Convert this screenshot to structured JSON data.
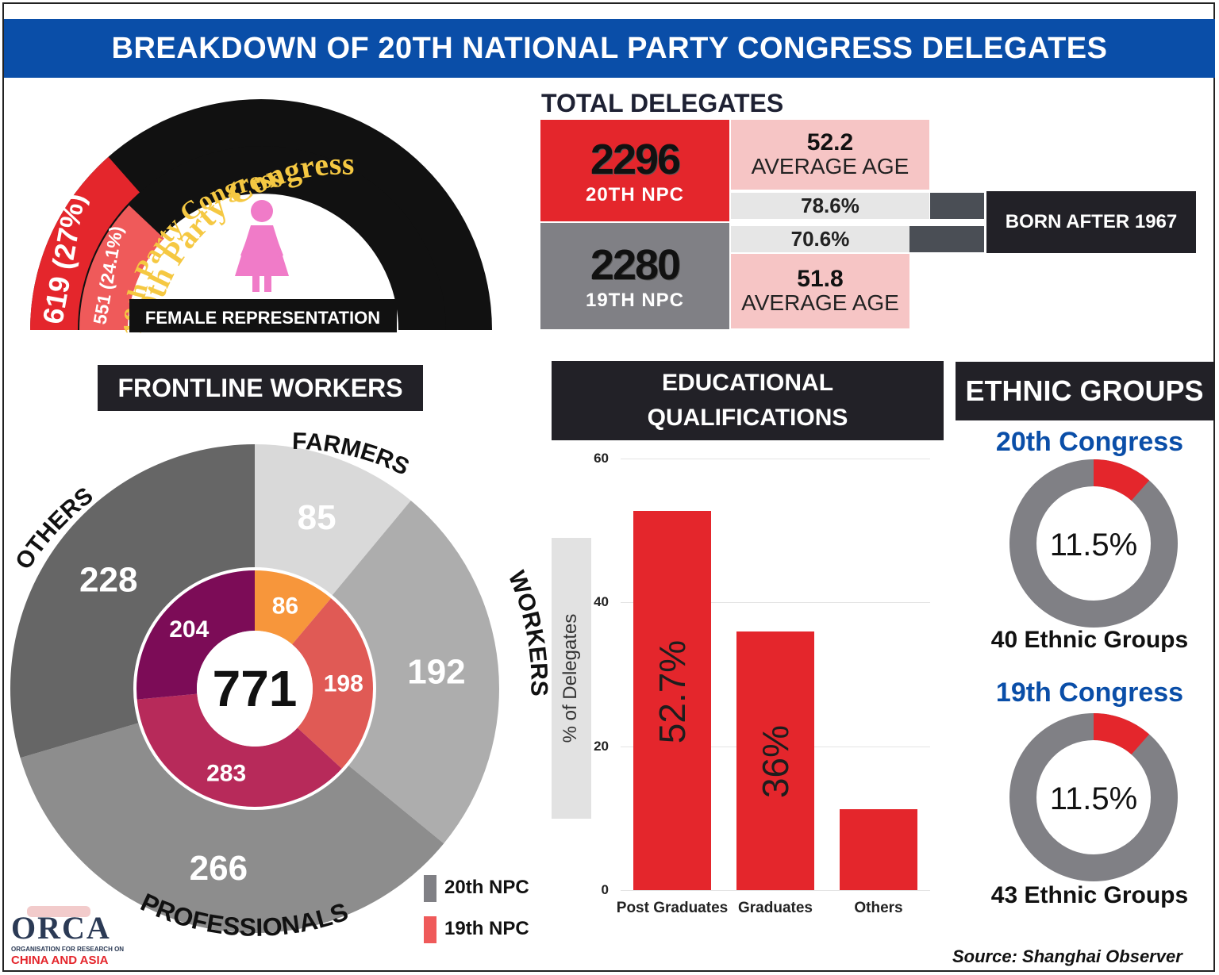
{
  "title": "BREAKDOWN OF 20TH NATIONAL PARTY CONGRESS DELEGATES",
  "colors": {
    "blue": "#0a4ea8",
    "red": "#e4262c",
    "dark": "#222127",
    "gray": "#808085",
    "pink": "#f6c5c5"
  },
  "female": {
    "arc20_label": "20th Party Congress",
    "arc19_label": "19th Party Congress",
    "val20": "619 (27%)",
    "val19": "551 (24.1%)",
    "frac20": 0.27,
    "frac19": 0.241,
    "caption": "FEMALE REPRESENTATION",
    "icon": "female-figure-icon"
  },
  "total": {
    "heading": "TOTAL DELEGATES",
    "npc20": {
      "count": "2296",
      "label": "20TH NPC",
      "avg_age": "52.2",
      "born_after_pct": "78.6%"
    },
    "npc19": {
      "count": "2280",
      "label": "19TH NPC",
      "avg_age": "51.8",
      "born_after_pct": "70.6%"
    },
    "avg_age_label": "AVERAGE AGE",
    "born_after_label": "BORN AFTER 1967"
  },
  "frontline": {
    "heading": "FRONTLINE WORKERS",
    "center_total": "771",
    "category_labels": [
      "FARMERS",
      "WORKERS",
      "PROFESSIONALS",
      "OTHERS"
    ],
    "legend": [
      {
        "label": "20th NPC",
        "color": "#808085"
      },
      {
        "label": "19th NPC",
        "color": "#ef5a5a"
      }
    ]
  },
  "education": {
    "heading_line1": "EDUCATIONAL",
    "heading_line2": "QUALIFICATIONS",
    "ylabel": "% of Delegates"
  },
  "ethnic": {
    "heading": "ETHNIC GROUPS",
    "c20": {
      "title": "20th Congress",
      "pct": "11.5%",
      "groups": "40 Ethnic Groups",
      "frac": 0.115
    },
    "c19": {
      "title": "19th Congress",
      "pct": "11.5%",
      "groups": "43 Ethnic Groups",
      "frac": 0.115
    }
  },
  "logo": {
    "name": "ORCA",
    "line1": "ORGANISATION FOR RESEARCH ON",
    "line2": "CHINA AND ASIA"
  },
  "source_label": "Source",
  "source_text": ": Shanghai Observer",
  "chart_data": [
    {
      "type": "pie",
      "title": "FRONTLINE WORKERS",
      "series": [
        {
          "name": "20th NPC",
          "categories": [
            "FARMERS",
            "WORKERS",
            "PROFESSIONALS",
            "OTHERS"
          ],
          "values": [
            85,
            192,
            266,
            228
          ],
          "colors": [
            "#d9d9d9",
            "#adadad",
            "#8d8d8d",
            "#666666"
          ]
        },
        {
          "name": "19th NPC",
          "categories": [
            "FARMERS",
            "WORKERS",
            "PROFESSIONALS",
            "OTHERS"
          ],
          "values": [
            86,
            198,
            283,
            204
          ],
          "colors": [
            "#f7963b",
            "#e05a55",
            "#b72a5a",
            "#7c0c57"
          ]
        }
      ]
    },
    {
      "type": "bar",
      "title": "EDUCATIONAL QUALIFICATIONS",
      "categories": [
        "Post Graduates",
        "Graduates",
        "Others"
      ],
      "values": [
        52.7,
        36,
        11.3
      ],
      "value_labels": [
        "52.7%",
        "36%",
        ""
      ],
      "ylabel": "% of Delegates",
      "ylim": [
        0,
        60
      ],
      "yticks": [
        0,
        20,
        40,
        60
      ],
      "grid": true
    }
  ]
}
